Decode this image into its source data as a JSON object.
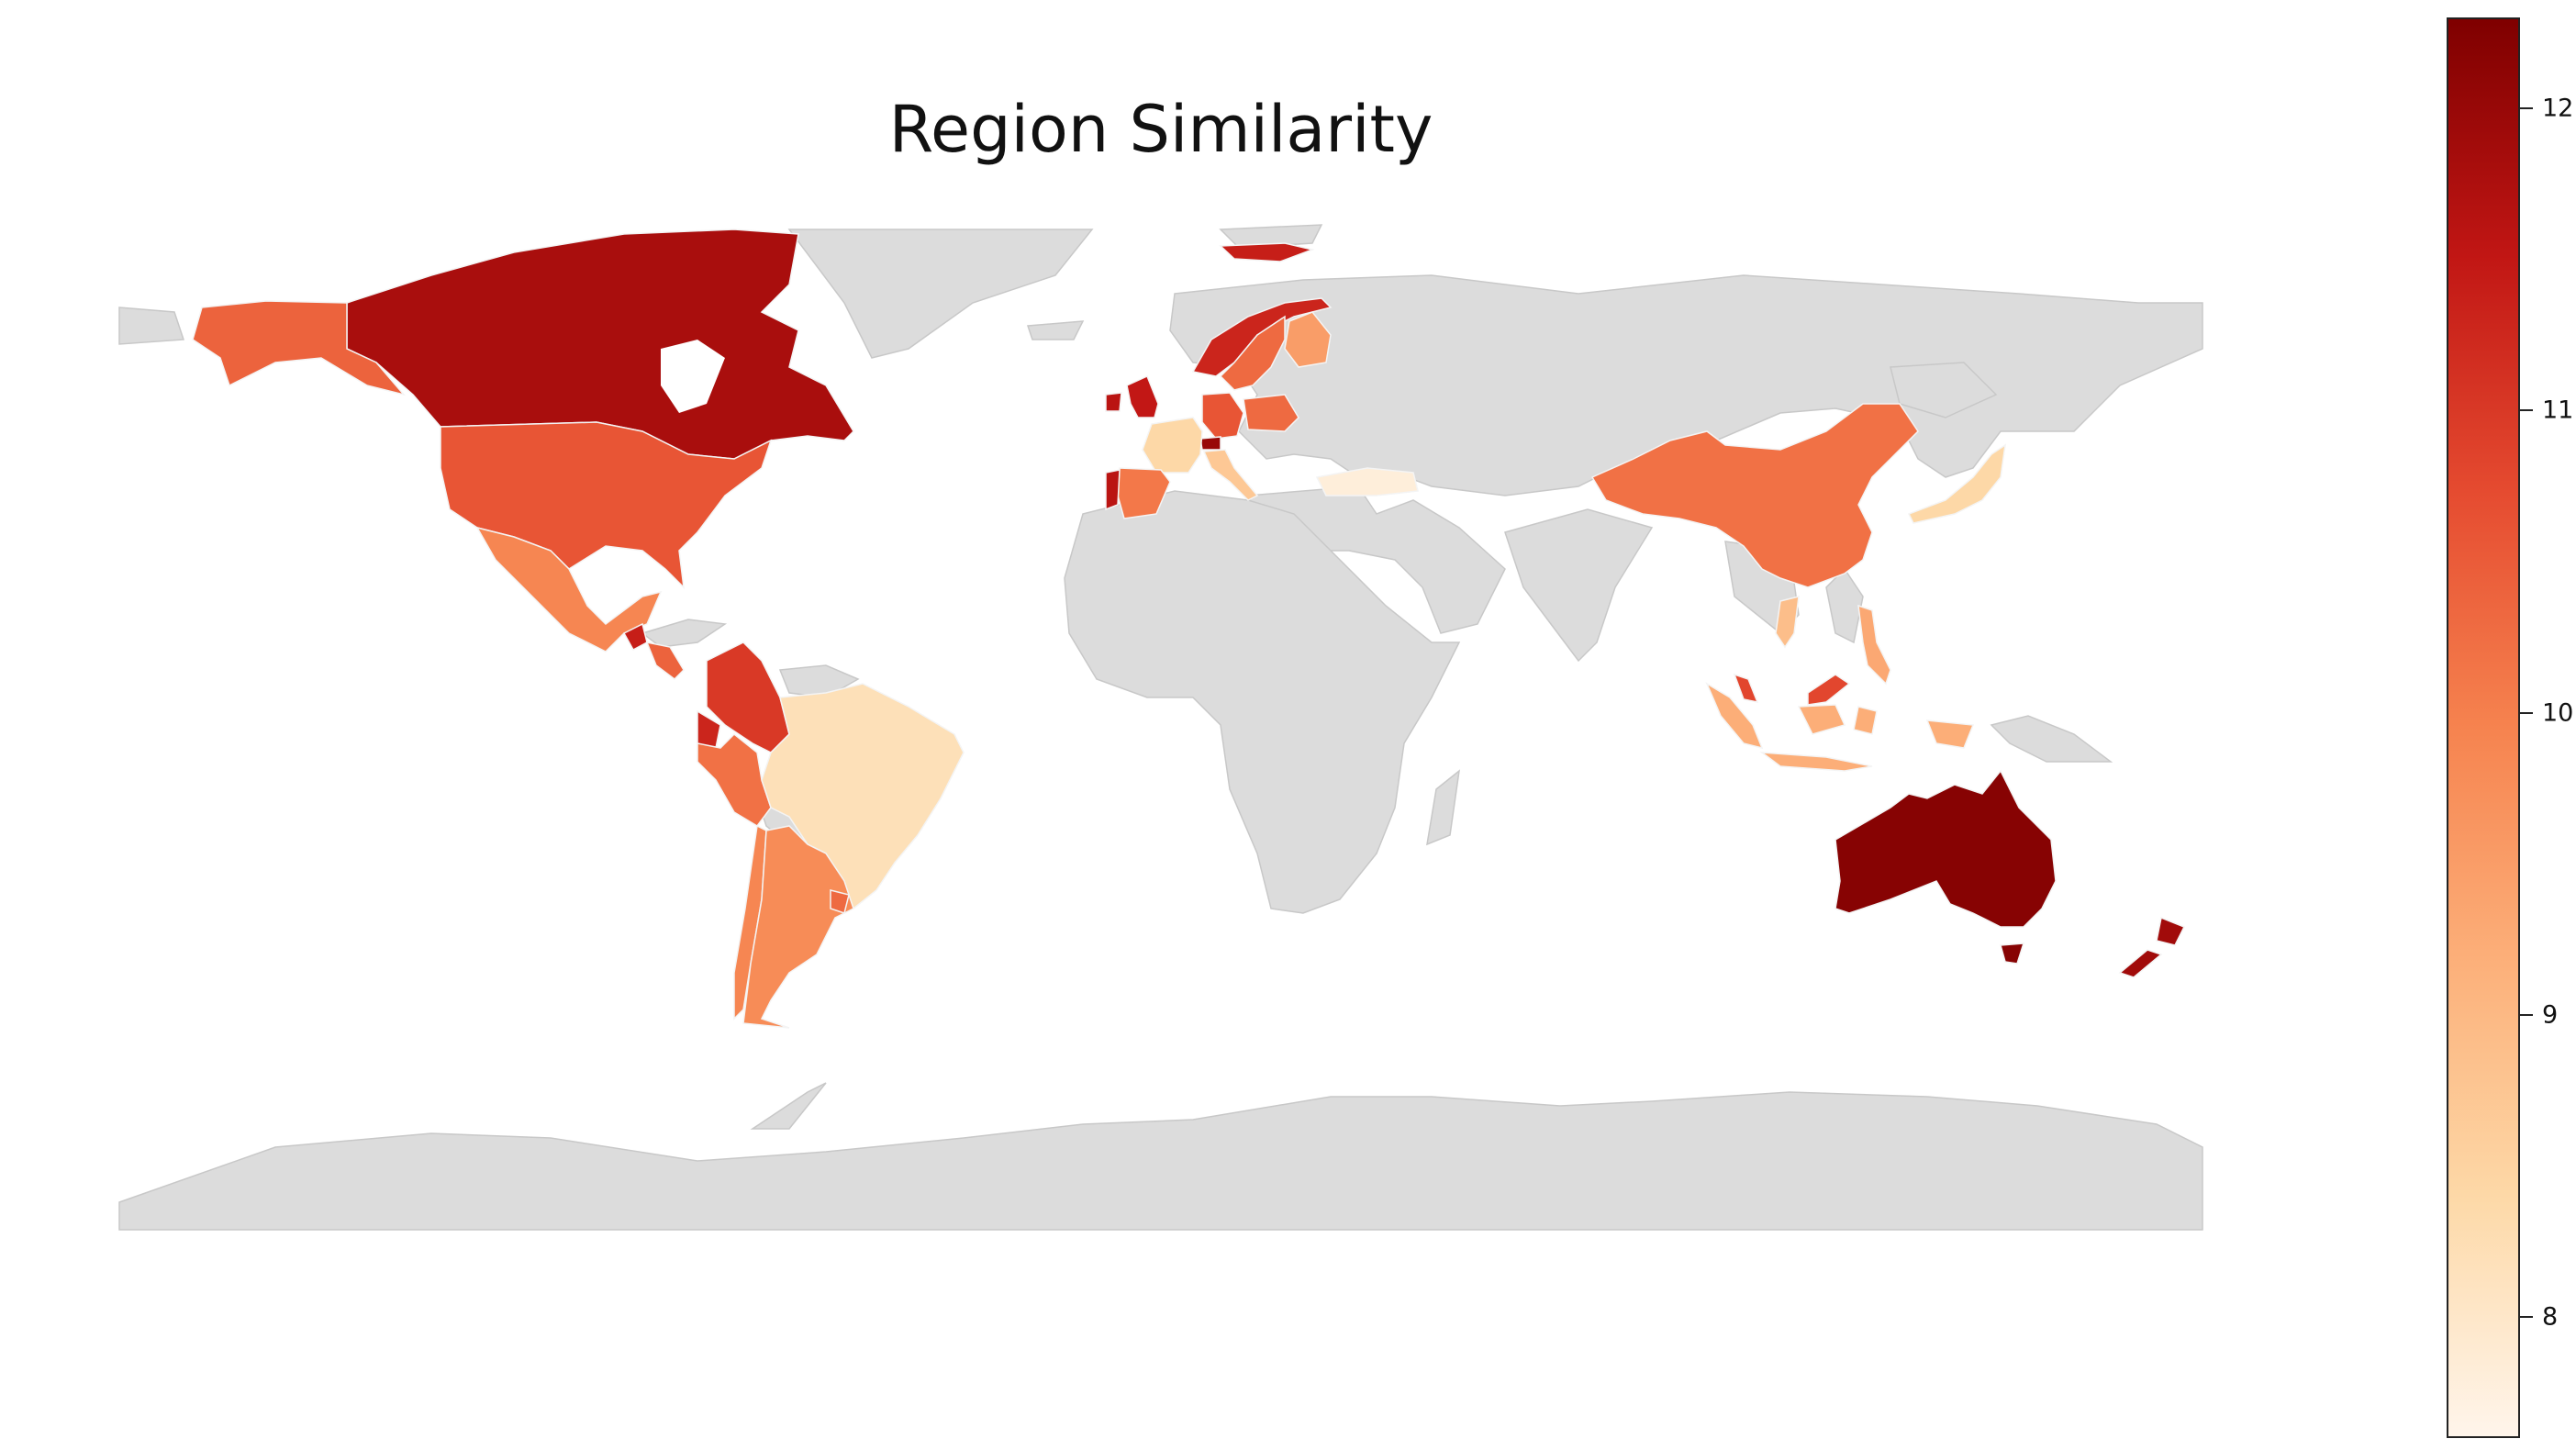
{
  "title": "Region Similarity",
  "colorbar": {
    "min": 7.6,
    "max": 12.3,
    "ticks": [
      8,
      9,
      10,
      11,
      12
    ],
    "stops": [
      "#fff5eb",
      "#fdd9a8",
      "#fcb07a",
      "#f6834f",
      "#e54b30",
      "#c11614",
      "#7f0000"
    ]
  },
  "chart_data": {
    "type": "choropleth",
    "title": "Region Similarity",
    "colorbar_range": [
      7.6,
      12.3
    ],
    "colorbar_ticks": [
      8,
      9,
      10,
      11,
      12
    ],
    "colormap": "OrRd",
    "no_data_color": "#dcdcdc",
    "regions": [
      {
        "name": "Canada",
        "value": 11.8
      },
      {
        "name": "Alaska (United States)",
        "value": 10.4
      },
      {
        "name": "United States",
        "value": 10.6
      },
      {
        "name": "Mexico",
        "value": 9.9
      },
      {
        "name": "Guatemala",
        "value": 11.4
      },
      {
        "name": "Central America",
        "value": 10.4
      },
      {
        "name": "Colombia",
        "value": 11.0
      },
      {
        "name": "Ecuador",
        "value": 11.3
      },
      {
        "name": "Peru",
        "value": 10.2
      },
      {
        "name": "Brazil",
        "value": 8.2
      },
      {
        "name": "Chile",
        "value": 9.9
      },
      {
        "name": "Argentina",
        "value": 9.8
      },
      {
        "name": "Uruguay",
        "value": 10.3
      },
      {
        "name": "United Kingdom",
        "value": 11.5
      },
      {
        "name": "Ireland",
        "value": 11.6
      },
      {
        "name": "Norway",
        "value": 11.3
      },
      {
        "name": "Sweden",
        "value": 10.3
      },
      {
        "name": "Finland",
        "value": 9.5
      },
      {
        "name": "Iceland",
        "value": 11.4
      },
      {
        "name": "Germany",
        "value": 10.6
      },
      {
        "name": "Poland",
        "value": 10.3
      },
      {
        "name": "France",
        "value": 8.4
      },
      {
        "name": "Spain",
        "value": 10.1
      },
      {
        "name": "Portugal",
        "value": 11.6
      },
      {
        "name": "Italy",
        "value": 8.7
      },
      {
        "name": "Switzerland",
        "value": 12.0
      },
      {
        "name": "Turkey",
        "value": 7.8
      },
      {
        "name": "China",
        "value": 10.2
      },
      {
        "name": "Japan",
        "value": 8.4
      },
      {
        "name": "Vietnam",
        "value": 8.9
      },
      {
        "name": "Philippines",
        "value": 9.3
      },
      {
        "name": "Malaysia",
        "value": 10.8
      },
      {
        "name": "Indonesia",
        "value": 9.2
      },
      {
        "name": "Australia",
        "value": 12.2
      },
      {
        "name": "New Zealand",
        "value": 11.9
      }
    ]
  }
}
